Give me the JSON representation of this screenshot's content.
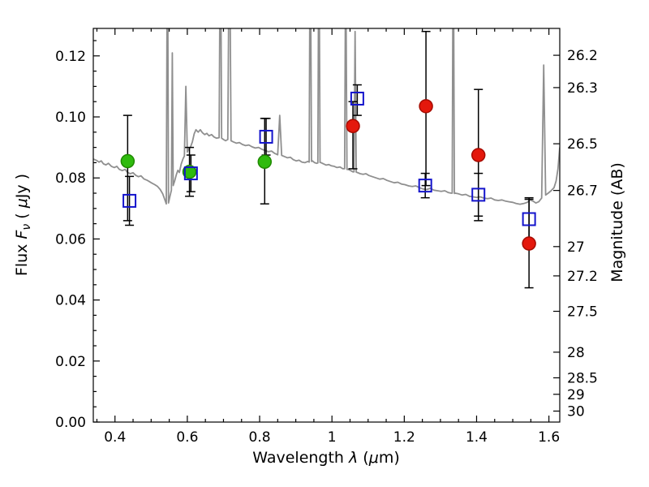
{
  "chart_data": {
    "type": "scatter",
    "title": "",
    "xlabel": "Wavelength λ (μm)",
    "ylabel": "Flux Fν ( μJy )",
    "ylabel_right": "Magnitude (AB)",
    "xlim": [
      0.34,
      1.63
    ],
    "ylim": [
      0.0,
      0.129
    ],
    "grid": false,
    "legend": "none",
    "x_ticks": [
      0.4,
      0.6,
      0.8,
      1.0,
      1.2,
      1.4,
      1.6
    ],
    "x_tick_labels": [
      "0.4",
      "0.6",
      "0.8",
      "1",
      "1.2",
      "1.4",
      "1.6"
    ],
    "x_minor_step": 0.05,
    "y_ticks": [
      0.0,
      0.02,
      0.04,
      0.06,
      0.08,
      0.1,
      0.12
    ],
    "y_tick_labels": [
      "0.00",
      "0.02",
      "0.04",
      "0.06",
      "0.08",
      "0.10",
      "0.12"
    ],
    "y_minor_step": 0.005,
    "right_axis": {
      "label": "Magnitude (AB)",
      "ticks": [
        {
          "label": "26.2",
          "flux": 0.1202
        },
        {
          "label": "26.3",
          "flux": 0.1096
        },
        {
          "label": "26.5",
          "flux": 0.0912
        },
        {
          "label": "26.7",
          "flux": 0.0759
        },
        {
          "label": "27",
          "flux": 0.0575
        },
        {
          "label": "27.2",
          "flux": 0.0479
        },
        {
          "label": "27.5",
          "flux": 0.0363
        },
        {
          "label": "28",
          "flux": 0.0229
        },
        {
          "label": "28.5",
          "flux": 0.0145
        },
        {
          "label": "29",
          "flux": 0.0091
        },
        {
          "label": "30",
          "flux": 0.0036
        }
      ]
    },
    "errorbar": {
      "color": "#000000",
      "capsize": 5.5,
      "linewidth": 1.5
    },
    "spectrum": {
      "name": "model-spectrum",
      "color": "#8f8f8f",
      "linewidth": 1.8,
      "points": [
        [
          0.34,
          0.0862
        ],
        [
          0.348,
          0.0858
        ],
        [
          0.356,
          0.0852
        ],
        [
          0.362,
          0.0856
        ],
        [
          0.368,
          0.0846
        ],
        [
          0.375,
          0.0843
        ],
        [
          0.382,
          0.0848
        ],
        [
          0.39,
          0.0838
        ],
        [
          0.398,
          0.0834
        ],
        [
          0.405,
          0.0838
        ],
        [
          0.412,
          0.0828
        ],
        [
          0.42,
          0.0824
        ],
        [
          0.428,
          0.0828
        ],
        [
          0.435,
          0.0818
        ],
        [
          0.442,
          0.0814
        ],
        [
          0.45,
          0.0817
        ],
        [
          0.458,
          0.0808
        ],
        [
          0.465,
          0.0804
        ],
        [
          0.472,
          0.0807
        ],
        [
          0.48,
          0.0797
        ],
        [
          0.488,
          0.0793
        ],
        [
          0.495,
          0.0788
        ],
        [
          0.502,
          0.0783
        ],
        [
          0.51,
          0.0778
        ],
        [
          0.518,
          0.0772
        ],
        [
          0.525,
          0.0762
        ],
        [
          0.532,
          0.0748
        ],
        [
          0.538,
          0.0728
        ],
        [
          0.542,
          0.0715
        ],
        [
          0.545,
          0.17
        ],
        [
          0.548,
          0.0718
        ],
        [
          0.552,
          0.074
        ],
        [
          0.556,
          0.076
        ],
        [
          0.5585,
          0.121
        ],
        [
          0.561,
          0.0775
        ],
        [
          0.565,
          0.079
        ],
        [
          0.57,
          0.0812
        ],
        [
          0.574,
          0.0825
        ],
        [
          0.578,
          0.0818
        ],
        [
          0.583,
          0.0845
        ],
        [
          0.588,
          0.0862
        ],
        [
          0.592,
          0.0872
        ],
        [
          0.596,
          0.11
        ],
        [
          0.6,
          0.0885
        ],
        [
          0.604,
          0.0895
        ],
        [
          0.609,
          0.0902
        ],
        [
          0.614,
          0.0918
        ],
        [
          0.619,
          0.0945
        ],
        [
          0.624,
          0.0958
        ],
        [
          0.63,
          0.095
        ],
        [
          0.636,
          0.0958
        ],
        [
          0.642,
          0.0948
        ],
        [
          0.648,
          0.0942
        ],
        [
          0.654,
          0.0946
        ],
        [
          0.66,
          0.0938
        ],
        [
          0.667,
          0.0942
        ],
        [
          0.674,
          0.0934
        ],
        [
          0.681,
          0.093
        ],
        [
          0.688,
          0.0932
        ],
        [
          0.6915,
          0.17
        ],
        [
          0.695,
          0.093
        ],
        [
          0.7,
          0.0926
        ],
        [
          0.706,
          0.0922
        ],
        [
          0.712,
          0.0926
        ],
        [
          0.7165,
          0.17
        ],
        [
          0.721,
          0.0922
        ],
        [
          0.728,
          0.0918
        ],
        [
          0.736,
          0.0914
        ],
        [
          0.744,
          0.0916
        ],
        [
          0.752,
          0.091
        ],
        [
          0.761,
          0.0906
        ],
        [
          0.77,
          0.0908
        ],
        [
          0.779,
          0.0902
        ],
        [
          0.788,
          0.0898
        ],
        [
          0.797,
          0.09
        ],
        [
          0.806,
          0.0894
        ],
        [
          0.815,
          0.089
        ],
        [
          0.824,
          0.0886
        ],
        [
          0.833,
          0.0888
        ],
        [
          0.842,
          0.088
        ],
        [
          0.85,
          0.0876
        ],
        [
          0.8555,
          0.1005
        ],
        [
          0.861,
          0.0874
        ],
        [
          0.869,
          0.087
        ],
        [
          0.877,
          0.0866
        ],
        [
          0.885,
          0.0868
        ],
        [
          0.893,
          0.086
        ],
        [
          0.901,
          0.0856
        ],
        [
          0.909,
          0.0858
        ],
        [
          0.917,
          0.0852
        ],
        [
          0.925,
          0.085
        ],
        [
          0.933,
          0.0854
        ],
        [
          0.937,
          0.0852
        ],
        [
          0.94,
          0.17
        ],
        [
          0.9435,
          0.0854
        ],
        [
          0.946,
          0.0856
        ],
        [
          0.952,
          0.085
        ],
        [
          0.958,
          0.0848
        ],
        [
          0.961,
          0.0849
        ],
        [
          0.964,
          0.17
        ],
        [
          0.967,
          0.0851
        ],
        [
          0.97,
          0.085
        ],
        [
          0.977,
          0.0846
        ],
        [
          0.984,
          0.0842
        ],
        [
          0.991,
          0.0844
        ],
        [
          0.998,
          0.084
        ],
        [
          1.006,
          0.0838
        ],
        [
          1.014,
          0.0834
        ],
        [
          1.022,
          0.0836
        ],
        [
          1.03,
          0.083
        ],
        [
          1.035,
          0.083
        ],
        [
          1.038,
          0.155
        ],
        [
          1.0415,
          0.0828
        ],
        [
          1.045,
          0.0828
        ],
        [
          1.052,
          0.0824
        ],
        [
          1.058,
          0.082
        ],
        [
          1.061,
          0.082
        ],
        [
          1.064,
          0.128
        ],
        [
          1.067,
          0.0819
        ],
        [
          1.07,
          0.0818
        ],
        [
          1.078,
          0.0814
        ],
        [
          1.086,
          0.0812
        ],
        [
          1.094,
          0.0814
        ],
        [
          1.102,
          0.0808
        ],
        [
          1.112,
          0.0804
        ],
        [
          1.122,
          0.08
        ],
        [
          1.132,
          0.0796
        ],
        [
          1.142,
          0.0798
        ],
        [
          1.152,
          0.0792
        ],
        [
          1.162,
          0.0788
        ],
        [
          1.172,
          0.0784
        ],
        [
          1.182,
          0.0786
        ],
        [
          1.192,
          0.078
        ],
        [
          1.202,
          0.0778
        ],
        [
          1.212,
          0.0774
        ],
        [
          1.222,
          0.0772
        ],
        [
          1.232,
          0.0774
        ],
        [
          1.242,
          0.0768
        ],
        [
          1.252,
          0.0764
        ],
        [
          1.262,
          0.0762
        ],
        [
          1.272,
          0.0766
        ],
        [
          1.282,
          0.076
        ],
        [
          1.292,
          0.0758
        ],
        [
          1.302,
          0.0756
        ],
        [
          1.312,
          0.0758
        ],
        [
          1.322,
          0.0752
        ],
        [
          1.33,
          0.075
        ],
        [
          1.3325,
          0.075
        ],
        [
          1.3355,
          0.17
        ],
        [
          1.3385,
          0.0749
        ],
        [
          1.341,
          0.075
        ],
        [
          1.35,
          0.0748
        ],
        [
          1.36,
          0.0744
        ],
        [
          1.37,
          0.0746
        ],
        [
          1.38,
          0.074
        ],
        [
          1.39,
          0.0738
        ],
        [
          1.4,
          0.0736
        ],
        [
          1.41,
          0.0738
        ],
        [
          1.42,
          0.0734
        ],
        [
          1.43,
          0.0732
        ],
        [
          1.44,
          0.0734
        ],
        [
          1.45,
          0.0728
        ],
        [
          1.46,
          0.0726
        ],
        [
          1.47,
          0.0728
        ],
        [
          1.48,
          0.0724
        ],
        [
          1.49,
          0.0722
        ],
        [
          1.5,
          0.072
        ],
        [
          1.51,
          0.0716
        ],
        [
          1.52,
          0.0714
        ],
        [
          1.53,
          0.0716
        ],
        [
          1.54,
          0.072
        ],
        [
          1.548,
          0.0728
        ],
        [
          1.556,
          0.0724
        ],
        [
          1.564,
          0.0718
        ],
        [
          1.572,
          0.0722
        ],
        [
          1.58,
          0.0734
        ],
        [
          1.5855,
          0.117
        ],
        [
          1.591,
          0.0744
        ],
        [
          1.598,
          0.075
        ],
        [
          1.606,
          0.0758
        ],
        [
          1.614,
          0.0768
        ],
        [
          1.62,
          0.079
        ],
        [
          1.625,
          0.083
        ],
        [
          1.63,
          0.09
        ]
      ]
    },
    "photometry": [
      {
        "name": "green-filled-circles",
        "marker": "circle",
        "size": 8,
        "fill": "#2fbb0e",
        "edge": "#1f8a00",
        "points": [
          {
            "x": 0.435,
            "y": 0.0855,
            "lo": 0.066,
            "hi": 0.1005
          },
          {
            "x": 0.606,
            "y": 0.082,
            "lo": 0.074,
            "hi": 0.09
          },
          {
            "x": 0.814,
            "y": 0.0853,
            "lo": 0.0715,
            "hi": 0.0995
          }
        ]
      },
      {
        "name": "red-filled-circles",
        "marker": "circle",
        "size": 8,
        "fill": "#e4180c",
        "edge": "#a50b00",
        "points": [
          {
            "x": 1.058,
            "y": 0.097,
            "lo": 0.083,
            "hi": 0.105
          },
          {
            "x": 1.26,
            "y": 0.1035,
            "lo": 0.0775,
            "hi": 0.128
          },
          {
            "x": 1.405,
            "y": 0.0875,
            "lo": 0.066,
            "hi": 0.109
          },
          {
            "x": 1.545,
            "y": 0.0585,
            "lo": 0.044,
            "hi": 0.0735
          }
        ]
      },
      {
        "name": "blue-open-squares",
        "marker": "square",
        "size": 7.5,
        "fill": "none",
        "edge": "#1414cc",
        "points": [
          {
            "x": 0.44,
            "y": 0.0725,
            "lo": 0.0645,
            "hi": 0.0805
          },
          {
            "x": 0.61,
            "y": 0.0815,
            "lo": 0.0755,
            "hi": 0.0875
          },
          {
            "x": 0.818,
            "y": 0.0935,
            "lo": 0.0875,
            "hi": 0.0995
          },
          {
            "x": 1.07,
            "y": 0.106,
            "lo": 0.1005,
            "hi": 0.1105
          },
          {
            "x": 1.258,
            "y": 0.0775,
            "lo": 0.0735,
            "hi": 0.0815
          },
          {
            "x": 1.405,
            "y": 0.0745,
            "lo": 0.0675,
            "hi": 0.0815
          },
          {
            "x": 1.545,
            "y": 0.0665,
            "lo": 0.06,
            "hi": 0.073
          }
        ]
      }
    ]
  },
  "labels": {
    "flux_pre": "Flux ",
    "flux_F": "F",
    "flux_nu": "ν",
    "flux_mid": " ( ",
    "flux_mu": "μ",
    "flux_post": "Jy )",
    "wave_pre": "Wavelength ",
    "wave_lambda": "λ",
    "wave_mid": " (",
    "wave_mu": "μ",
    "wave_post": "m)",
    "right": "Magnitude (AB)"
  }
}
